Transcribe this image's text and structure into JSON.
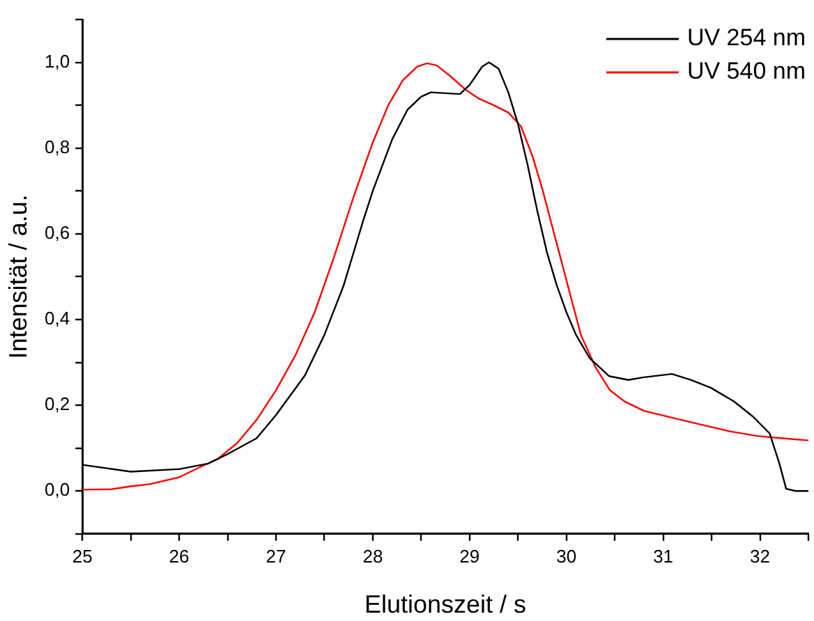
{
  "chart_data": {
    "type": "line",
    "xlabel": "Elutionszeit / s",
    "ylabel": "Intensität / a.u.",
    "legend": "top right",
    "grid": false,
    "marker": "none",
    "line_style": "solid",
    "xlim": [
      25,
      32.5
    ],
    "ylim": [
      -0.1,
      1.1
    ],
    "xticks": [
      25,
      {
        "value": 25.5,
        "label": null
      },
      26,
      {
        "value": 26.5,
        "label": null
      },
      27,
      {
        "value": 27.5,
        "label": null
      },
      28,
      {
        "value": 28.5,
        "label": null
      },
      29,
      {
        "value": 29.5,
        "label": null
      },
      30,
      {
        "value": 30.5,
        "label": null
      },
      31,
      {
        "value": 31.5,
        "label": null
      },
      32,
      {
        "value": 32.5,
        "label": null
      }
    ],
    "yticks": [
      {
        "value": -0.1,
        "label": null
      },
      {
        "value": 0,
        "label": "0,0"
      },
      {
        "value": 0.1,
        "label": null
      },
      {
        "value": 0.2,
        "label": "0,2"
      },
      {
        "value": 0.3,
        "label": null
      },
      {
        "value": 0.4,
        "label": "0,4"
      },
      {
        "value": 0.5,
        "label": null
      },
      {
        "value": 0.6,
        "label": "0,6"
      },
      {
        "value": 0.7,
        "label": null
      },
      {
        "value": 0.8,
        "label": "0,8"
      },
      {
        "value": 0.9,
        "label": null
      },
      {
        "value": 1.0,
        "label": "1,0"
      },
      {
        "value": 1.1,
        "label": null
      }
    ],
    "series": [
      {
        "name": "UV 254 nm",
        "color": "#000000",
        "x": [
          25.0,
          25.5,
          26.0,
          26.3,
          26.5,
          26.8,
          27.0,
          27.3,
          27.5,
          27.7,
          27.9,
          28.0,
          28.2,
          28.36,
          28.5,
          28.6,
          28.9,
          29.0,
          29.13,
          29.2,
          29.3,
          29.4,
          29.5,
          29.6,
          29.7,
          29.8,
          29.9,
          30.0,
          30.1,
          30.24,
          30.44,
          30.64,
          30.79,
          31.09,
          31.29,
          31.49,
          31.73,
          31.93,
          32.1,
          32.2,
          32.27,
          32.37,
          32.5
        ],
        "values": [
          0.061,
          0.045,
          0.051,
          0.064,
          0.086,
          0.123,
          0.177,
          0.27,
          0.364,
          0.48,
          0.63,
          0.7,
          0.82,
          0.89,
          0.92,
          0.93,
          0.926,
          0.947,
          0.99,
          1.0,
          0.985,
          0.93,
          0.856,
          0.76,
          0.653,
          0.556,
          0.48,
          0.417,
          0.364,
          0.31,
          0.268,
          0.259,
          0.265,
          0.273,
          0.259,
          0.241,
          0.209,
          0.173,
          0.134,
          0.064,
          0.005,
          0.0,
          0.0
        ]
      },
      {
        "name": "UV 540 nm",
        "color": "#ff0000",
        "x": [
          25.0,
          25.3,
          25.5,
          25.7,
          26.0,
          26.2,
          26.4,
          26.6,
          26.8,
          27.0,
          27.2,
          27.4,
          27.6,
          27.8,
          28.0,
          28.16,
          28.31,
          28.46,
          28.56,
          28.66,
          28.8,
          28.96,
          29.1,
          29.25,
          29.4,
          29.53,
          29.65,
          29.75,
          29.85,
          29.95,
          30.05,
          30.15,
          30.3,
          30.45,
          30.6,
          30.8,
          31.09,
          31.39,
          31.69,
          31.98,
          32.23,
          32.5
        ],
        "values": [
          0.003,
          0.004,
          0.011,
          0.016,
          0.032,
          0.054,
          0.075,
          0.112,
          0.166,
          0.235,
          0.316,
          0.417,
          0.546,
          0.685,
          0.813,
          0.9,
          0.958,
          0.99,
          0.998,
          0.993,
          0.968,
          0.936,
          0.915,
          0.9,
          0.883,
          0.851,
          0.781,
          0.706,
          0.62,
          0.535,
          0.449,
          0.364,
          0.289,
          0.235,
          0.209,
          0.187,
          0.171,
          0.155,
          0.139,
          0.128,
          0.123,
          0.118
        ]
      }
    ]
  }
}
